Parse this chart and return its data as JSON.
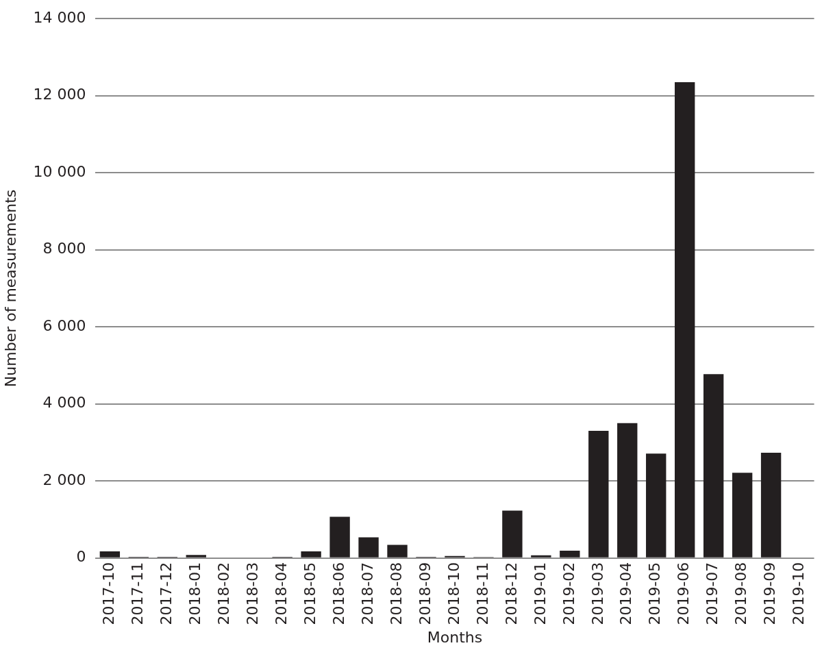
{
  "chart_data": {
    "type": "bar",
    "xlabel": "Months",
    "ylabel": "Number of measurements",
    "categories": [
      "2017-10",
      "2017-11",
      "2017-12",
      "2018-01",
      "2018-02",
      "2018-03",
      "2018-04",
      "2018-05",
      "2018-06",
      "2018-07",
      "2018-08",
      "2018-09",
      "2018-10",
      "2018-11",
      "2018-12",
      "2019-01",
      "2019-02",
      "2019-03",
      "2019-04",
      "2019-05",
      "2019-06",
      "2019-07",
      "2019-08",
      "2019-09",
      "2019-10"
    ],
    "values": [
      170,
      30,
      30,
      80,
      0,
      0,
      30,
      170,
      1070,
      535,
      340,
      30,
      50,
      25,
      1230,
      70,
      190,
      3300,
      3500,
      2710,
      12350,
      4770,
      2210,
      2730,
      0
    ],
    "color": "#231f20",
    "ylim": [
      0,
      14000
    ],
    "yticks": [
      {
        "value": 0,
        "label": "0"
      },
      {
        "value": 2000,
        "label": "2 000"
      },
      {
        "value": 4000,
        "label": "4 000"
      },
      {
        "value": 6000,
        "label": "6 000"
      },
      {
        "value": 8000,
        "label": "8 000"
      },
      {
        "value": 10000,
        "label": "10 000"
      },
      {
        "value": 12000,
        "label": "12 000"
      },
      {
        "value": 14000,
        "label": "14 000"
      }
    ],
    "grid": "y"
  }
}
